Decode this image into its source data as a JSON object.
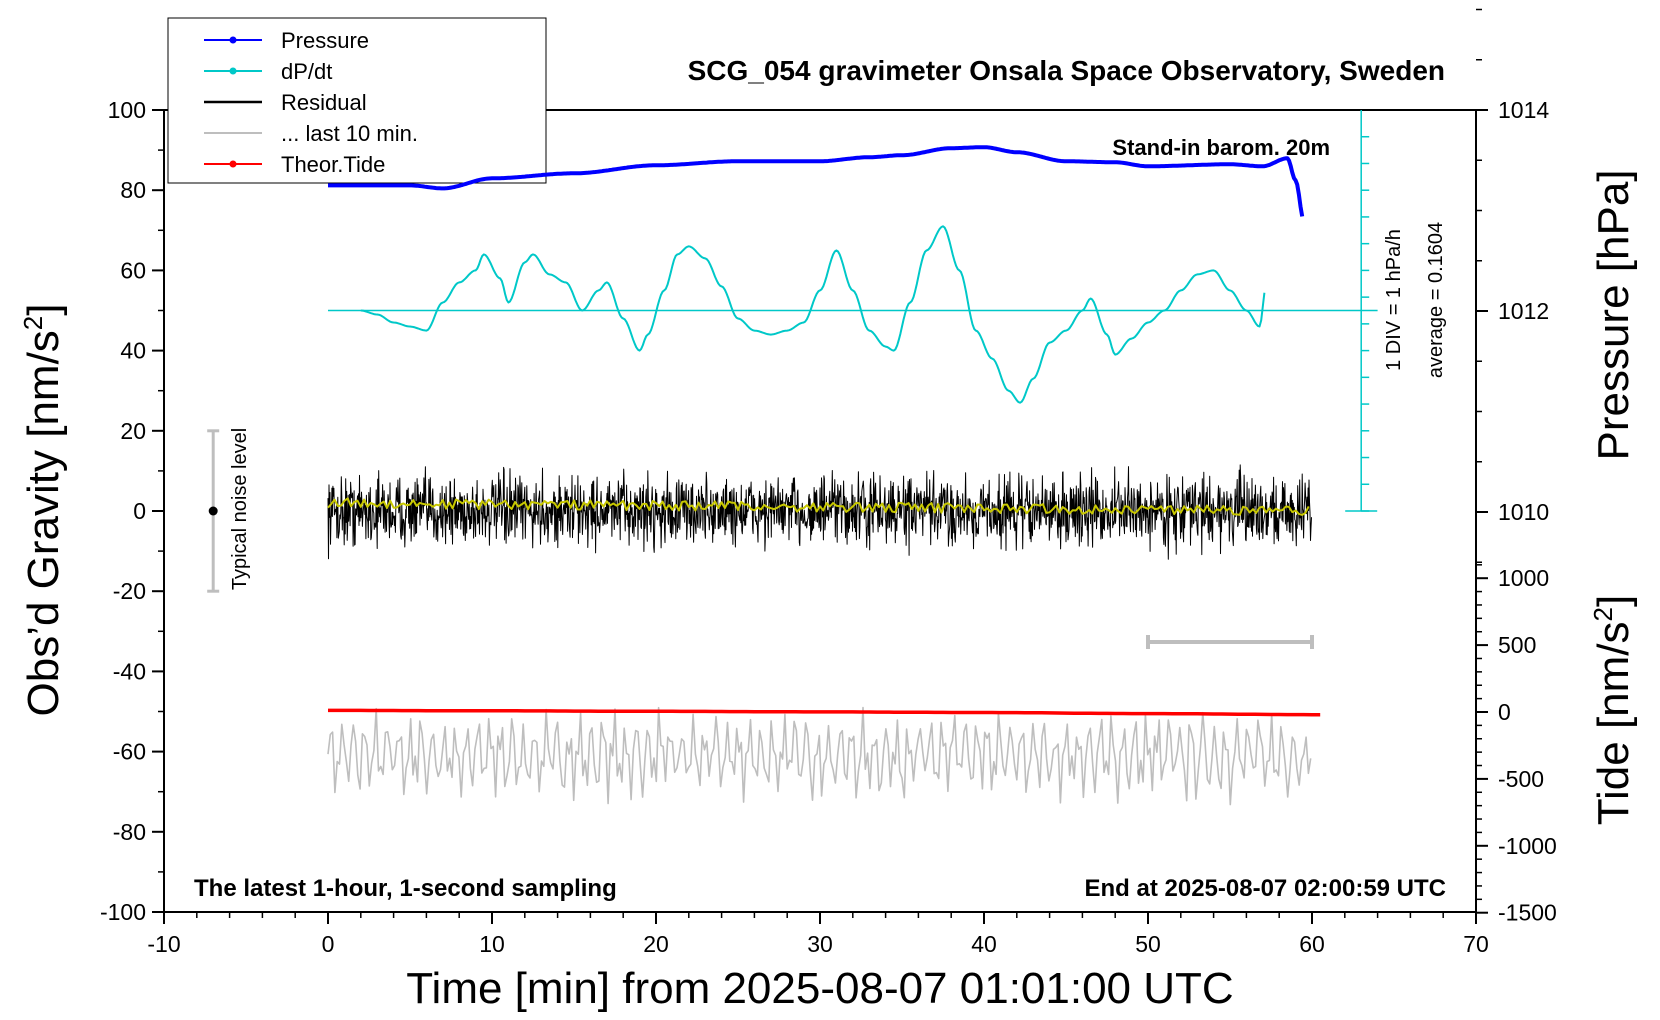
{
  "chart_data": {
    "type": "line",
    "title": "SCG_054 gravimeter Onsala Space Observatory, Sweden",
    "xlabel": "Time [min] from 2025-08-07 01:01:00 UTC",
    "ylabel_left": "Obs’d Gravity [nm/s",
    "ylabel_left_sup": "2",
    "ylabel_left_tail": "]",
    "ylabel_right_top": "Pressure [hPa]",
    "ylabel_right_bottom": "Tide [nm/s",
    "ylabel_right_bottom_sup": "2",
    "ylabel_right_bottom_tail": "]",
    "xlim": [
      -10,
      70
    ],
    "ylim_left": [
      -100,
      100
    ],
    "x_ticks": [
      "-10",
      "0",
      "10",
      "20",
      "30",
      "40",
      "50",
      "60",
      "70"
    ],
    "y_ticks_left": [
      "-100",
      "-80",
      "-60",
      "-40",
      "-20",
      "0",
      "20",
      "40",
      "60",
      "80",
      "100"
    ],
    "pressure_ticks": [
      "1010",
      "1012",
      "1014"
    ],
    "tide_ticks": [
      "-1500",
      "-1000",
      "-500",
      "0",
      "500",
      "1000"
    ],
    "annotations": {
      "barometer": "Stand-in barom. 20m",
      "div": "1 DIV = 1 hPa/h",
      "average": "average = 0.1604",
      "noise": "Typical noise level",
      "bottom_left": "The latest 1-hour, 1-second sampling",
      "bottom_right": "End at 2025-08-07 02:00:59 UTC"
    },
    "legend": {
      "position": "top-left",
      "entries": [
        {
          "label": "Pressure",
          "color": "#0000ff",
          "marker": true
        },
        {
          "label": "dP/dt",
          "color": "#00c8c8",
          "marker": true
        },
        {
          "label": "Residual",
          "color": "#000000",
          "marker": false
        },
        {
          "label": "... last 10 min.",
          "color": "#bebebe",
          "marker": false
        },
        {
          "label": "Theor.Tide",
          "color": "#ff0000",
          "marker": true
        }
      ]
    },
    "series": [
      {
        "name": "Pressure",
        "axis": "pressure_hPa",
        "color": "#0000ff",
        "x": [
          0,
          5,
          7,
          10,
          15,
          20,
          25,
          30,
          33,
          35,
          38,
          40,
          42,
          45,
          48,
          50,
          55,
          57,
          58.5,
          59,
          59.5
        ],
        "y": [
          1013.25,
          1013.25,
          1013.22,
          1013.32,
          1013.37,
          1013.45,
          1013.49,
          1013.49,
          1013.53,
          1013.55,
          1013.62,
          1013.63,
          1013.58,
          1013.49,
          1013.48,
          1013.44,
          1013.46,
          1013.44,
          1013.52,
          1013.3,
          1012.9
        ]
      },
      {
        "name": "dP/dt",
        "axis": "left_gravity",
        "color": "#00c8c8",
        "x": [
          2,
          3,
          4,
          5,
          6,
          7,
          8,
          9,
          9.5,
          10.5,
          11,
          12,
          12.5,
          13.5,
          14.5,
          15.5,
          16.5,
          17,
          18,
          19,
          19.5,
          20.5,
          21.3,
          22,
          23,
          24,
          25,
          26,
          27,
          28,
          29,
          30,
          31,
          32,
          33,
          34,
          34.5,
          35.5,
          36.5,
          37.5,
          38.5,
          39.5,
          40.5,
          41.5,
          42.2,
          43,
          44,
          45,
          46,
          46.5,
          47.5,
          48,
          49,
          50,
          51,
          52,
          53,
          54,
          55,
          56,
          56.8,
          57.2
        ],
        "y": [
          50,
          49,
          47,
          46,
          45,
          52,
          57,
          60,
          64,
          58,
          52,
          62,
          64,
          59,
          57,
          50,
          55,
          57,
          48,
          40,
          44,
          55,
          64,
          66,
          63,
          56,
          48,
          45,
          44,
          45,
          47,
          55,
          65,
          55,
          45,
          41,
          40,
          52,
          65,
          71,
          60,
          45,
          38,
          30,
          27,
          33,
          42,
          45,
          50,
          53,
          44,
          39,
          43,
          47,
          50,
          55,
          59,
          60,
          55,
          50,
          46,
          56
        ]
      },
      {
        "name": "dP/dt baseline",
        "axis": "left_gravity",
        "color": "#00c8c8",
        "x": [
          0,
          64
        ],
        "y": [
          50,
          50
        ]
      },
      {
        "name": "Residual",
        "axis": "left_gravity",
        "color": "#000000",
        "x": [
          0,
          60
        ],
        "y": [
          0,
          0
        ],
        "note": "high-frequency noise, approximately ±10 nm/s² around 0"
      },
      {
        "name": "Residual smoothed",
        "axis": "left_gravity",
        "color": "#c8c800",
        "x": [
          0,
          60
        ],
        "y": [
          2,
          0
        ]
      },
      {
        "name": "... last 10 min.",
        "axis": "left_gravity",
        "color": "#bebebe",
        "x": [
          0,
          60
        ],
        "y": [
          -62,
          -62
        ],
        "note": "oscillation between about -72 and -50"
      },
      {
        "name": "Theor.Tide",
        "axis": "tide_nm_s2",
        "color": "#ff0000",
        "x": [
          0,
          10,
          20,
          30,
          40,
          50,
          60.5
        ],
        "y": [
          12,
          9,
          5,
          1,
          -4,
          -12,
          -20
        ]
      }
    ],
    "noise_bar": {
      "x": -7,
      "ymin": -20,
      "ymax": 20
    },
    "last10_marker": {
      "x": [
        50,
        60
      ]
    },
    "grid": false
  }
}
